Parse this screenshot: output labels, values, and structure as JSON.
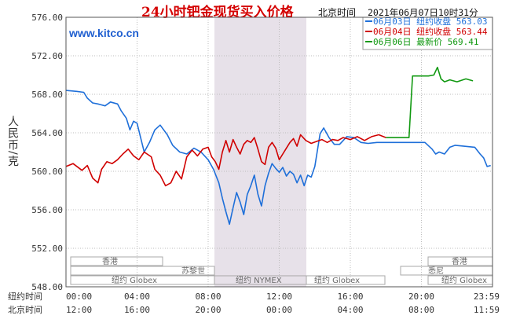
{
  "header": {
    "title": "24小时钯金现货买入价格",
    "tz_label": "北京时间",
    "timestamp": "2021年06月07日10时31分",
    "watermark": "www.kitco.cn"
  },
  "legend": [
    {
      "label": "06月03日 纽约收盘 563.03",
      "color": "#1e6fd9"
    },
    {
      "label": "06月04日 纽约收盘 563.44",
      "color": "#d00000"
    },
    {
      "label": "06月06日  最新价 569.41",
      "color": "#119911"
    }
  ],
  "yaxis": {
    "label": "人民币/克",
    "ticks": [
      "576.00",
      "572.00",
      "568.00",
      "564.00",
      "560.00",
      "556.00",
      "552.00",
      "548.00"
    ]
  },
  "xaxis": {
    "row1_label": "纽约时间",
    "row2_label": "北京时间",
    "row1_ticks": [
      "00:00",
      "04:00",
      "08:00",
      "12:00",
      "16:00",
      "20:00",
      "23:59"
    ],
    "row2_ticks": [
      "12:00",
      "16:00",
      "20:00",
      "00:00",
      "04:00",
      "08:00",
      "11:59"
    ]
  },
  "markets": {
    "hongkong": "香港",
    "zurich": "苏黎世",
    "ny_globex": "纽约 Globex",
    "ny_nymex": "纽约 NYMEX",
    "sydney": "悉尼"
  },
  "chart_data": {
    "type": "line",
    "ylim": [
      548,
      576
    ],
    "xlim": [
      0,
      24
    ],
    "x_unit": "New York time (hours)",
    "series": [
      {
        "name": "06月03日",
        "color": "#1e6fd9",
        "x": [
          0,
          0.6,
          1.0,
          1.2,
          1.5,
          1.8,
          2.2,
          2.5,
          2.9,
          3.1,
          3.4,
          3.6,
          3.8,
          4.0,
          4.2,
          4.4,
          4.7,
          5.0,
          5.3,
          5.7,
          6.0,
          6.4,
          6.8,
          7.2,
          7.6,
          8.0,
          8.3,
          8.6,
          8.8,
          9.0,
          9.2,
          9.4,
          9.6,
          9.8,
          10.0,
          10.2,
          10.4,
          10.6,
          10.8,
          11.0,
          11.2,
          11.4,
          11.6,
          11.8,
          12.0,
          12.2,
          12.4,
          12.6,
          12.8,
          13.0,
          13.2,
          13.4,
          13.6,
          13.8,
          14.0,
          14.3,
          14.5,
          14.8,
          15.1,
          15.4,
          15.8,
          16.2,
          16.6,
          17.0,
          17.5,
          18.0,
          18.8,
          19.5,
          20.2,
          20.6,
          20.8,
          21.0,
          21.3,
          21.6,
          21.9,
          22.4,
          23.0,
          23.3,
          23.5,
          23.7,
          23.9
        ],
        "y": [
          568.4,
          568.3,
          568.2,
          567.6,
          567.1,
          567.0,
          566.8,
          567.2,
          567.0,
          566.3,
          565.5,
          564.3,
          565.2,
          565.0,
          563.5,
          562.0,
          563.0,
          564.3,
          564.8,
          563.8,
          562.7,
          562.0,
          561.8,
          562.4,
          562.0,
          561.2,
          560.2,
          558.8,
          557.2,
          555.8,
          554.5,
          556.2,
          557.8,
          556.8,
          555.5,
          557.6,
          558.5,
          559.6,
          557.6,
          556.4,
          558.5,
          559.8,
          560.8,
          560.3,
          559.9,
          560.4,
          559.5,
          560.0,
          559.7,
          558.8,
          559.6,
          558.5,
          559.6,
          559.4,
          560.5,
          563.9,
          564.5,
          563.5,
          562.8,
          562.8,
          563.6,
          563.5,
          563.0,
          562.9,
          563.0,
          563.0,
          563.0,
          563.0,
          563.0,
          562.3,
          561.8,
          562.0,
          561.8,
          562.5,
          562.7,
          562.6,
          562.5,
          561.8,
          561.4,
          560.5,
          560.6
        ]
      },
      {
        "name": "06月04日",
        "color": "#d00000",
        "x": [
          0,
          0.4,
          0.9,
          1.2,
          1.5,
          1.8,
          2.0,
          2.3,
          2.6,
          2.9,
          3.2,
          3.5,
          3.8,
          4.1,
          4.4,
          4.8,
          5.0,
          5.3,
          5.6,
          5.9,
          6.2,
          6.5,
          6.8,
          7.1,
          7.4,
          7.7,
          8.0,
          8.2,
          8.4,
          8.6,
          8.8,
          9.0,
          9.2,
          9.4,
          9.6,
          9.8,
          10.0,
          10.2,
          10.4,
          10.6,
          10.8,
          11.0,
          11.2,
          11.4,
          11.6,
          11.8,
          12.0,
          12.2,
          12.4,
          12.6,
          12.8,
          13.0,
          13.2,
          13.5,
          13.8,
          14.1,
          14.4,
          14.7,
          15.0,
          15.3,
          15.6,
          16.0,
          16.4,
          16.8,
          17.2,
          17.6,
          18.0
        ],
        "y": [
          560.5,
          560.8,
          560.1,
          560.6,
          559.3,
          558.8,
          560.2,
          561.0,
          560.8,
          561.2,
          561.8,
          562.3,
          561.6,
          561.2,
          562.0,
          561.5,
          560.2,
          559.6,
          558.5,
          558.8,
          560.0,
          559.2,
          561.5,
          562.2,
          561.6,
          562.3,
          562.5,
          561.5,
          561.0,
          560.2,
          562.0,
          563.2,
          562.0,
          563.3,
          562.5,
          561.8,
          562.8,
          563.2,
          563.0,
          563.5,
          562.3,
          561.0,
          560.7,
          562.5,
          563.0,
          562.4,
          561.2,
          561.8,
          562.4,
          563.0,
          563.4,
          562.6,
          563.8,
          563.2,
          562.9,
          563.1,
          563.3,
          563.0,
          563.3,
          563.2,
          563.5,
          563.3,
          563.6,
          563.2,
          563.6,
          563.8,
          563.5
        ]
      },
      {
        "name": "06月06日",
        "color": "#119911",
        "x": [
          18.0,
          18.6,
          19.3,
          19.5,
          19.9,
          20.4,
          20.7,
          20.9,
          21.1,
          21.3,
          21.6,
          22.0,
          22.5,
          22.9
        ],
        "y": [
          563.5,
          563.5,
          563.5,
          569.9,
          569.9,
          569.9,
          570.0,
          570.8,
          569.6,
          569.3,
          569.5,
          569.3,
          569.6,
          569.4
        ]
      }
    ]
  }
}
